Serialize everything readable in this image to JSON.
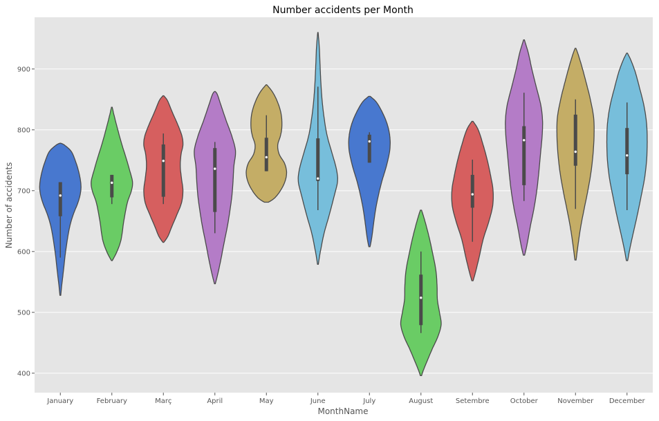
{
  "chart_data": {
    "type": "violin",
    "title": "Number accidents per Month",
    "xlabel": "MonthName",
    "ylabel": "Number of accidents",
    "ylim": [
      368,
      985
    ],
    "yticks": [
      400,
      500,
      600,
      700,
      800,
      900
    ],
    "grid": true,
    "legend": "none",
    "palette": [
      "#4C72B0",
      "#55A868",
      "#C44E52",
      "#8172B2",
      "#CCB974",
      "#64B5CD"
    ],
    "violins": [
      {
        "category": "January",
        "color": "#4878cf",
        "min": 528,
        "max": 778,
        "q1": 658,
        "median": 692,
        "q3": 714,
        "whisker_low": 590,
        "whisker_high": 714,
        "density": [
          [
            528,
            0.02
          ],
          [
            545,
            0.07
          ],
          [
            565,
            0.14
          ],
          [
            590,
            0.22
          ],
          [
            615,
            0.32
          ],
          [
            640,
            0.45
          ],
          [
            660,
            0.62
          ],
          [
            680,
            0.85
          ],
          [
            695,
            0.97
          ],
          [
            710,
            1.0
          ],
          [
            730,
            0.9
          ],
          [
            750,
            0.72
          ],
          [
            765,
            0.52
          ],
          [
            775,
            0.2
          ],
          [
            778,
            0.02
          ]
        ]
      },
      {
        "category": "February",
        "color": "#6acc65",
        "min": 585,
        "max": 837,
        "q1": 689,
        "median": 713,
        "q3": 726,
        "whisker_low": 678,
        "whisker_high": 726,
        "density": [
          [
            585,
            0.02
          ],
          [
            600,
            0.25
          ],
          [
            620,
            0.45
          ],
          [
            650,
            0.58
          ],
          [
            680,
            0.75
          ],
          [
            700,
            0.95
          ],
          [
            715,
            1.0
          ],
          [
            735,
            0.85
          ],
          [
            755,
            0.68
          ],
          [
            780,
            0.45
          ],
          [
            805,
            0.25
          ],
          [
            825,
            0.1
          ],
          [
            837,
            0.02
          ]
        ]
      },
      {
        "category": "Març",
        "color": "#d65f5f",
        "min": 615,
        "max": 856,
        "q1": 690,
        "median": 749,
        "q3": 776,
        "whisker_low": 678,
        "whisker_high": 794,
        "density": [
          [
            615,
            0.02
          ],
          [
            625,
            0.22
          ],
          [
            640,
            0.4
          ],
          [
            660,
            0.65
          ],
          [
            680,
            0.88
          ],
          [
            700,
            0.95
          ],
          [
            720,
            0.88
          ],
          [
            740,
            0.82
          ],
          [
            760,
            0.86
          ],
          [
            775,
            0.95
          ],
          [
            790,
            0.9
          ],
          [
            810,
            0.68
          ],
          [
            830,
            0.42
          ],
          [
            848,
            0.2
          ],
          [
            856,
            0.02
          ]
        ]
      },
      {
        "category": "April",
        "color": "#b47cc7",
        "min": 547,
        "max": 863,
        "q1": 665,
        "median": 736,
        "q3": 770,
        "whisker_low": 630,
        "whisker_high": 780,
        "density": [
          [
            547,
            0.02
          ],
          [
            560,
            0.12
          ],
          [
            585,
            0.28
          ],
          [
            615,
            0.45
          ],
          [
            640,
            0.6
          ],
          [
            665,
            0.72
          ],
          [
            690,
            0.82
          ],
          [
            715,
            0.88
          ],
          [
            740,
            0.92
          ],
          [
            765,
            1.0
          ],
          [
            790,
            0.82
          ],
          [
            815,
            0.55
          ],
          [
            840,
            0.3
          ],
          [
            858,
            0.12
          ],
          [
            863,
            0.02
          ]
        ]
      },
      {
        "category": "May",
        "color": "#c4ad66",
        "min": 681,
        "max": 874,
        "q1": 732,
        "median": 755,
        "q3": 787,
        "whisker_low": 732,
        "whisker_high": 824,
        "density": [
          [
            681,
            0.1
          ],
          [
            688,
            0.4
          ],
          [
            700,
            0.68
          ],
          [
            715,
            0.9
          ],
          [
            730,
            0.98
          ],
          [
            745,
            0.88
          ],
          [
            760,
            0.62
          ],
          [
            775,
            0.55
          ],
          [
            790,
            0.68
          ],
          [
            805,
            0.75
          ],
          [
            825,
            0.72
          ],
          [
            845,
            0.55
          ],
          [
            862,
            0.3
          ],
          [
            874,
            0.02
          ]
        ]
      },
      {
        "category": "June",
        "color": "#77bedb",
        "min": 579,
        "max": 960,
        "q1": 716,
        "median": 720,
        "q3": 786,
        "whisker_low": 668,
        "whisker_high": 871,
        "density": [
          [
            579,
            0.02
          ],
          [
            600,
            0.12
          ],
          [
            630,
            0.3
          ],
          [
            660,
            0.55
          ],
          [
            690,
            0.78
          ],
          [
            715,
            0.95
          ],
          [
            735,
            0.9
          ],
          [
            760,
            0.7
          ],
          [
            790,
            0.45
          ],
          [
            820,
            0.3
          ],
          [
            850,
            0.2
          ],
          [
            880,
            0.14
          ],
          [
            910,
            0.1
          ],
          [
            935,
            0.07
          ],
          [
            960,
            0.01
          ]
        ]
      },
      {
        "category": "July",
        "color": "#4878cf",
        "min": 608,
        "max": 855,
        "q1": 746,
        "median": 781,
        "q3": 792,
        "whisker_low": 746,
        "whisker_high": 796,
        "density": [
          [
            608,
            0.03
          ],
          [
            620,
            0.1
          ],
          [
            640,
            0.18
          ],
          [
            665,
            0.28
          ],
          [
            690,
            0.42
          ],
          [
            715,
            0.6
          ],
          [
            740,
            0.82
          ],
          [
            765,
            0.98
          ],
          [
            785,
            1.0
          ],
          [
            805,
            0.9
          ],
          [
            825,
            0.68
          ],
          [
            845,
            0.35
          ],
          [
            855,
            0.04
          ]
        ]
      },
      {
        "category": "August",
        "color": "#6acc65",
        "min": 396,
        "max": 668,
        "q1": 479,
        "median": 524,
        "q3": 562,
        "whisker_low": 466,
        "whisker_high": 600,
        "density": [
          [
            396,
            0.03
          ],
          [
            405,
            0.12
          ],
          [
            420,
            0.3
          ],
          [
            440,
            0.55
          ],
          [
            460,
            0.82
          ],
          [
            480,
            0.98
          ],
          [
            500,
            0.9
          ],
          [
            520,
            0.8
          ],
          [
            545,
            0.78
          ],
          [
            570,
            0.72
          ],
          [
            600,
            0.55
          ],
          [
            630,
            0.35
          ],
          [
            655,
            0.15
          ],
          [
            668,
            0.03
          ]
        ]
      },
      {
        "category": "Setembre",
        "color": "#d65f5f",
        "min": 552,
        "max": 814,
        "q1": 672,
        "median": 694,
        "q3": 726,
        "whisker_low": 616,
        "whisker_high": 751,
        "density": [
          [
            552,
            0.03
          ],
          [
            565,
            0.14
          ],
          [
            590,
            0.32
          ],
          [
            620,
            0.52
          ],
          [
            650,
            0.8
          ],
          [
            675,
            0.98
          ],
          [
            700,
            1.0
          ],
          [
            725,
            0.88
          ],
          [
            750,
            0.72
          ],
          [
            775,
            0.52
          ],
          [
            800,
            0.28
          ],
          [
            814,
            0.03
          ]
        ]
      },
      {
        "category": "October",
        "color": "#b47cc7",
        "min": 594,
        "max": 948,
        "q1": 709,
        "median": 783,
        "q3": 806,
        "whisker_low": 683,
        "whisker_high": 861,
        "density": [
          [
            594,
            0.03
          ],
          [
            610,
            0.14
          ],
          [
            640,
            0.3
          ],
          [
            670,
            0.48
          ],
          [
            700,
            0.62
          ],
          [
            730,
            0.72
          ],
          [
            760,
            0.8
          ],
          [
            790,
            0.88
          ],
          [
            815,
            0.9
          ],
          [
            840,
            0.82
          ],
          [
            870,
            0.6
          ],
          [
            900,
            0.38
          ],
          [
            925,
            0.22
          ],
          [
            948,
            0.02
          ]
        ]
      },
      {
        "category": "November",
        "color": "#c4ad66",
        "min": 586,
        "max": 934,
        "q1": 741,
        "median": 764,
        "q3": 825,
        "whisker_low": 670,
        "whisker_high": 850,
        "density": [
          [
            586,
            0.03
          ],
          [
            610,
            0.12
          ],
          [
            640,
            0.25
          ],
          [
            670,
            0.42
          ],
          [
            700,
            0.6
          ],
          [
            730,
            0.75
          ],
          [
            760,
            0.85
          ],
          [
            790,
            0.9
          ],
          [
            820,
            0.88
          ],
          [
            850,
            0.72
          ],
          [
            880,
            0.5
          ],
          [
            905,
            0.3
          ],
          [
            925,
            0.12
          ],
          [
            934,
            0.02
          ]
        ]
      },
      {
        "category": "December",
        "color": "#77bedb",
        "min": 585,
        "max": 926,
        "q1": 727,
        "median": 758,
        "q3": 803,
        "whisker_low": 668,
        "whisker_high": 845,
        "density": [
          [
            585,
            0.03
          ],
          [
            605,
            0.14
          ],
          [
            630,
            0.3
          ],
          [
            660,
            0.5
          ],
          [
            690,
            0.68
          ],
          [
            720,
            0.85
          ],
          [
            750,
            0.95
          ],
          [
            780,
            0.98
          ],
          [
            810,
            0.95
          ],
          [
            840,
            0.82
          ],
          [
            870,
            0.6
          ],
          [
            895,
            0.4
          ],
          [
            915,
            0.18
          ],
          [
            926,
            0.02
          ]
        ]
      }
    ]
  }
}
